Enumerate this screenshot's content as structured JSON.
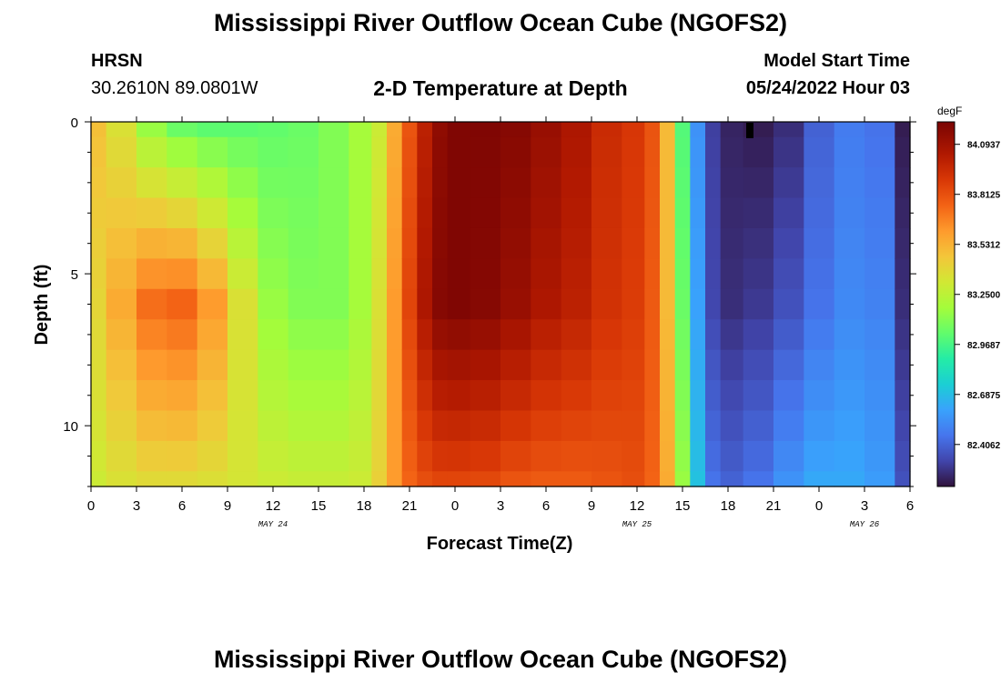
{
  "header": {
    "title": "Mississippi River Outflow Ocean Cube (NGOFS2)",
    "station_name": "HRSN",
    "station_coords": "30.2610N  89.0801W",
    "subtitle": "2-D Temperature at Depth",
    "model_start_label": "Model Start Time",
    "model_start_value": "05/24/2022 Hour 03"
  },
  "footer": {
    "title": "Mississippi River Outflow Ocean Cube (NGOFS2)"
  },
  "chart_data": {
    "type": "heatmap",
    "title": "2-D Temperature at Depth",
    "xlabel": "Forecast Time(Z)",
    "ylabel": "Depth (ft)",
    "x_range_hours": [
      0,
      54
    ],
    "y_range_ft": [
      0,
      12
    ],
    "y_ticks": [
      0,
      5,
      10
    ],
    "x_ticks": [
      {
        "h": 0,
        "label": "0"
      },
      {
        "h": 3,
        "label": "3"
      },
      {
        "h": 6,
        "label": "6"
      },
      {
        "h": 9,
        "label": "9"
      },
      {
        "h": 12,
        "label": "12"
      },
      {
        "h": 15,
        "label": "15"
      },
      {
        "h": 18,
        "label": "18"
      },
      {
        "h": 21,
        "label": "21"
      },
      {
        "h": 24,
        "label": "0"
      },
      {
        "h": 27,
        "label": "3"
      },
      {
        "h": 30,
        "label": "6"
      },
      {
        "h": 33,
        "label": "9"
      },
      {
        "h": 36,
        "label": "12"
      },
      {
        "h": 39,
        "label": "15"
      },
      {
        "h": 42,
        "label": "18"
      },
      {
        "h": 45,
        "label": "21"
      },
      {
        "h": 48,
        "label": "0"
      },
      {
        "h": 51,
        "label": "3"
      },
      {
        "h": 54,
        "label": "6"
      }
    ],
    "date_labels": [
      {
        "h": 12,
        "label": "MAY 24"
      },
      {
        "h": 36,
        "label": "MAY 25"
      },
      {
        "h": 51,
        "label": "MAY 26"
      }
    ],
    "colorbar": {
      "unit": "degF",
      "min": 82.17,
      "max": 84.22,
      "labels": [
        {
          "value": 84.0937,
          "label": "84.0937"
        },
        {
          "value": 83.8125,
          "label": "83.8125"
        },
        {
          "value": 83.5312,
          "label": "83.5312"
        },
        {
          "value": 83.25,
          "label": "83.2500"
        },
        {
          "value": 82.9687,
          "label": "82.9687"
        },
        {
          "value": 82.6875,
          "label": "82.6875"
        },
        {
          "value": 82.4062,
          "label": "82.4062"
        }
      ]
    },
    "time_axis_h": [
      0,
      2,
      4,
      6,
      8,
      10,
      12,
      14,
      16,
      18,
      19,
      20,
      21,
      22,
      23,
      24,
      26,
      28,
      30,
      32,
      34,
      36,
      37,
      38,
      39,
      40,
      41,
      42,
      44,
      46,
      48,
      50,
      52,
      54
    ],
    "depth_levels_ft": [
      0,
      1,
      2,
      3,
      4,
      5,
      6,
      7,
      8,
      9,
      10,
      11,
      12
    ],
    "temperature_surface_degF": [
      83.48,
      83.35,
      83.15,
      83.05,
      83.02,
      83.02,
      83.03,
      83.05,
      83.1,
      83.18,
      83.3,
      83.55,
      83.8,
      84.0,
      84.15,
      84.2,
      84.2,
      84.18,
      84.12,
      84.05,
      83.95,
      83.9,
      83.8,
      83.5,
      83.0,
      82.55,
      82.3,
      82.22,
      82.2,
      82.25,
      82.4,
      82.48,
      82.45,
      82.2
    ],
    "temperature_mid_degF": [
      83.4,
      83.55,
      83.72,
      83.75,
      83.6,
      83.35,
      83.15,
      83.1,
      83.1,
      83.18,
      83.35,
      83.6,
      83.85,
      84.05,
      84.18,
      84.2,
      84.18,
      84.12,
      84.05,
      84.0,
      83.92,
      83.88,
      83.78,
      83.5,
      83.05,
      82.6,
      82.32,
      82.25,
      82.28,
      82.35,
      82.45,
      82.52,
      82.5,
      82.25
    ],
    "temperature_bottom_degF": [
      83.3,
      83.35,
      83.38,
      83.38,
      83.36,
      83.33,
      83.3,
      83.28,
      83.28,
      83.3,
      83.42,
      83.6,
      83.75,
      83.82,
      83.85,
      83.85,
      83.84,
      83.8,
      83.78,
      83.78,
      83.8,
      83.82,
      83.75,
      83.55,
      83.15,
      82.7,
      82.45,
      82.4,
      82.45,
      82.55,
      82.62,
      82.62,
      82.58,
      82.35
    ]
  }
}
